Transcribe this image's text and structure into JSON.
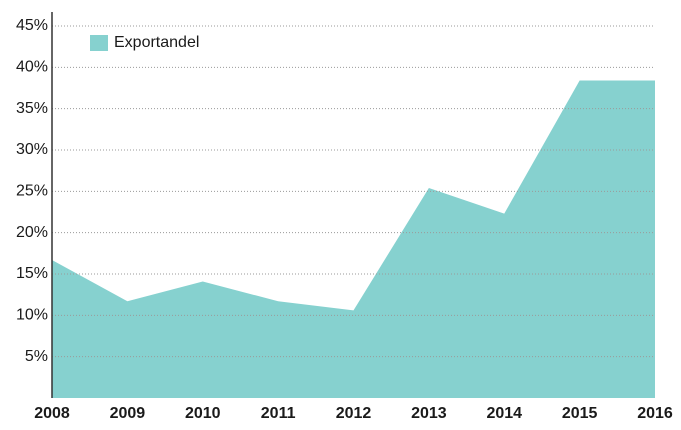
{
  "chart_data": {
    "type": "area",
    "x": [
      2008,
      2009,
      2010,
      2011,
      2012,
      2013,
      2014,
      2015,
      2016
    ],
    "xlim": [
      2008,
      2016
    ],
    "xticks": [
      2008,
      2009,
      2010,
      2011,
      2012,
      2013,
      2014,
      2015,
      2016
    ],
    "series": [
      {
        "name": "Exportandel",
        "color": "#86d1cf",
        "values": [
          16.7,
          11.7,
          14.1,
          11.7,
          10.6,
          25.4,
          22.3,
          38.4,
          38.4
        ]
      }
    ],
    "ylim": [
      0,
      45
    ],
    "yticks": [
      {
        "value": 5,
        "label": "5%"
      },
      {
        "value": 10,
        "label": "10%"
      },
      {
        "value": 15,
        "label": "15%"
      },
      {
        "value": 20,
        "label": "20%"
      },
      {
        "value": 25,
        "label": "25%"
      },
      {
        "value": 30,
        "label": "30%"
      },
      {
        "value": 35,
        "label": "35%"
      },
      {
        "value": 40,
        "label": "40%"
      },
      {
        "value": 45,
        "label": "45%"
      }
    ],
    "grid": true,
    "legend": "upper left"
  }
}
